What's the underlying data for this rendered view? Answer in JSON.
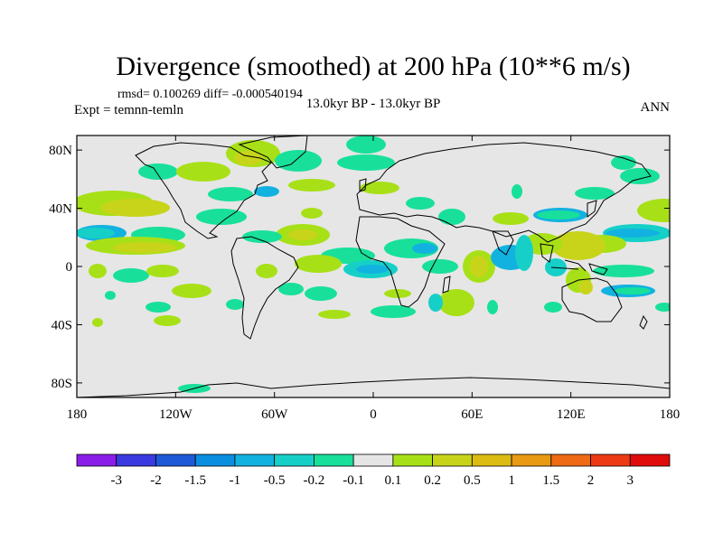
{
  "title": "Divergence (smoothed) at 200 hPa (10**6 m/s)",
  "stats": "rmsd= 0.100269 diff= -0.000540194",
  "left_subtitle": "Expt = temnn-temln",
  "center_subtitle": "13.0kyr BP - 13.0kyr BP",
  "right_subtitle": "ANN",
  "y_ticks": [
    "80N",
    "40N",
    "0",
    "40S",
    "80S"
  ],
  "y_tick_values": [
    80,
    40,
    0,
    -40,
    -80
  ],
  "x_ticks": [
    "180",
    "120W",
    "60W",
    "0",
    "60E",
    "120E",
    "180"
  ],
  "x_tick_values": [
    -180,
    -120,
    -60,
    0,
    60,
    120,
    180
  ],
  "colorbar": {
    "labels": [
      "-3",
      "-2",
      "-1.5",
      "-1",
      "-0.5",
      "-0.2",
      "-0.1",
      "0.1",
      "0.2",
      "0.5",
      "1",
      "1.5",
      "2",
      "3"
    ],
    "colors": [
      "#8a1ee8",
      "#3a3ae0",
      "#1e5ad8",
      "#0a8ee0",
      "#12b2e0",
      "#16d0c8",
      "#18e09a",
      "#e6e6e6",
      "#a8e018",
      "#c8d41a",
      "#dcbc12",
      "#e89a12",
      "#ee6a14",
      "#ee3a14",
      "#e00c0c"
    ]
  },
  "map": {
    "background_color": "#e6e6e6",
    "lon_range": [
      -180,
      180
    ],
    "lat_range": [
      -90,
      90
    ]
  }
}
